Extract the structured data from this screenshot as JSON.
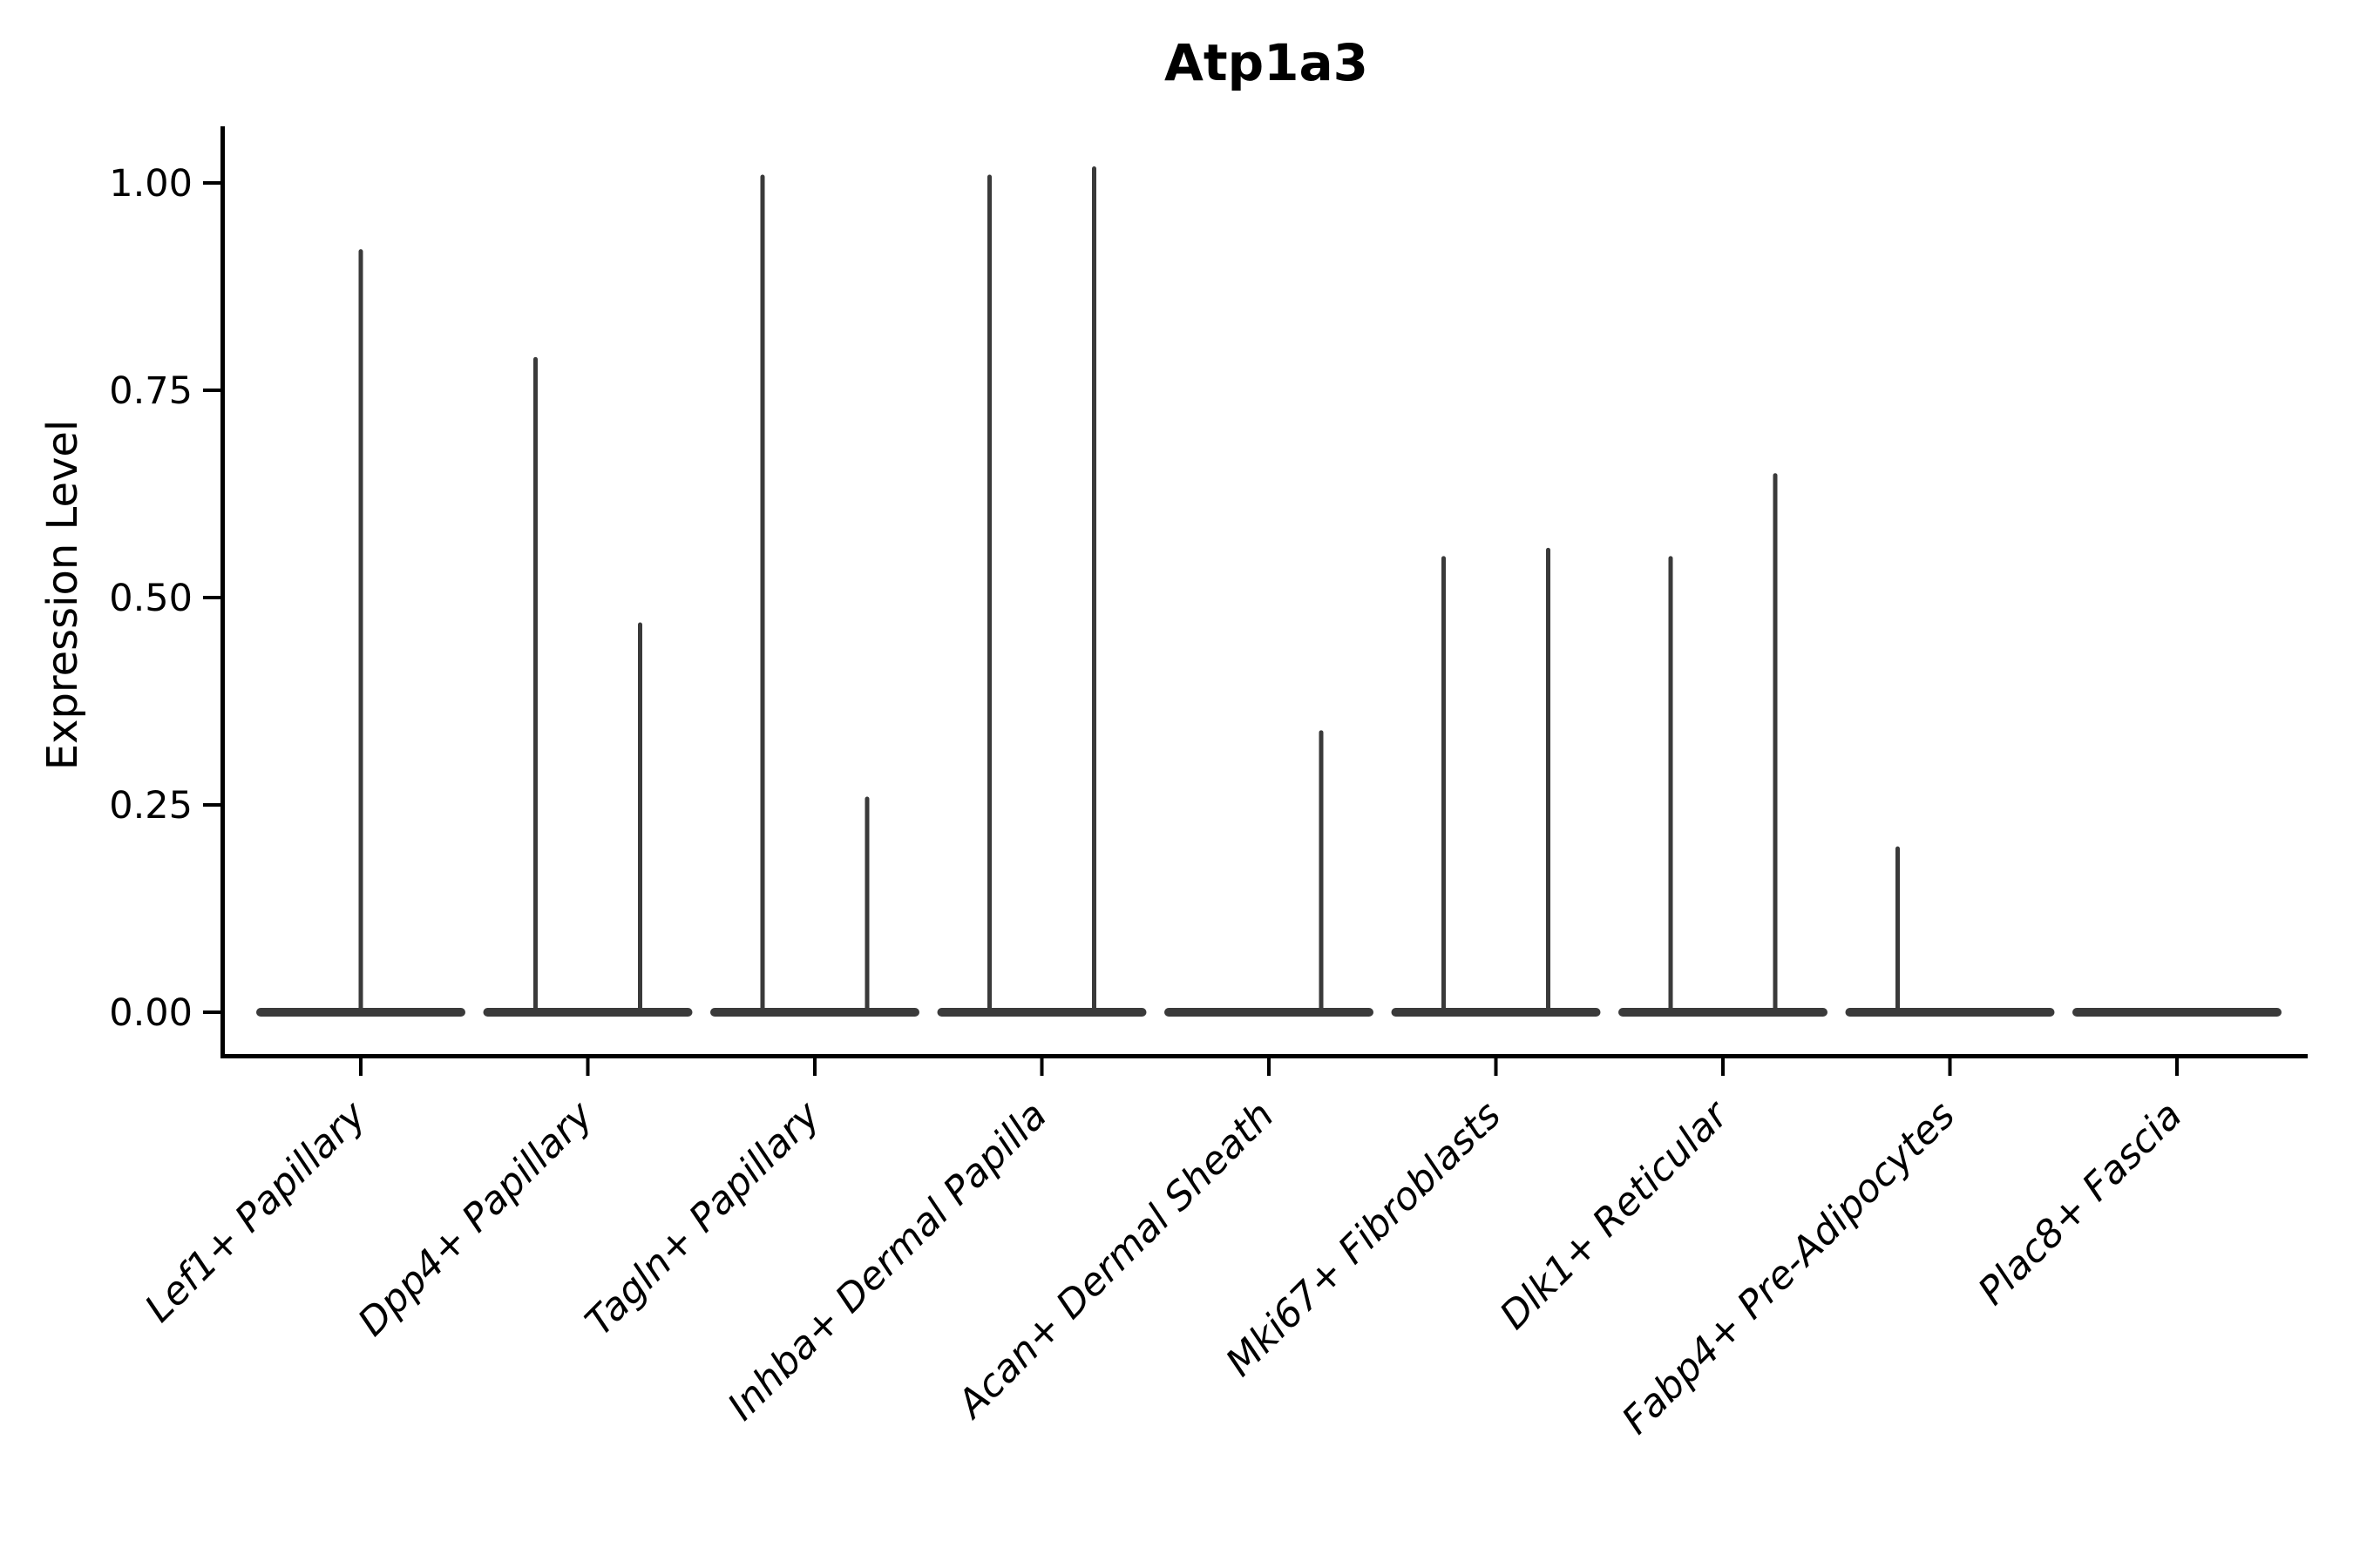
{
  "title": "Atp1a3",
  "chart_data": {
    "type": "violin",
    "title": "Atp1a3",
    "xlabel": "",
    "ylabel": "Expression Level",
    "ylim": [
      0,
      1.07
    ],
    "grid": false,
    "legend": "none",
    "violin_color": "#3a3a3a",
    "axis_color": "#000000",
    "yticks": [
      {
        "value": 0.0,
        "label": "0.00"
      },
      {
        "value": 0.25,
        "label": "0.25"
      },
      {
        "value": 0.5,
        "label": "0.50"
      },
      {
        "value": 0.75,
        "label": "0.75"
      },
      {
        "value": 1.0,
        "label": "1.00"
      }
    ],
    "description": "Violin plot of Atp1a3 expression; each cell type shows a flat violin body at expression 0 with thin spikes reaching the maximum expression of sub-violins.",
    "categories": [
      {
        "label": "Lef1+ Papillary",
        "spikes": [
          {
            "position": "center",
            "height": 0.92
          }
        ]
      },
      {
        "label": "Dpp4+ Papillary",
        "spikes": [
          {
            "position": "left",
            "height": 0.79
          },
          {
            "position": "right",
            "height": 0.47
          }
        ]
      },
      {
        "label": "Tagln+ Papillary",
        "spikes": [
          {
            "position": "left",
            "height": 1.01
          },
          {
            "position": "right",
            "height": 0.26
          }
        ]
      },
      {
        "label": "Inhba+ Dermal Papilla",
        "spikes": [
          {
            "position": "left",
            "height": 1.01
          },
          {
            "position": "right",
            "height": 1.02
          }
        ]
      },
      {
        "label": "Acan+ Dermal Sheath",
        "spikes": [
          {
            "position": "right",
            "height": 0.34
          }
        ]
      },
      {
        "label": "Mki67+ Fibroblasts",
        "spikes": [
          {
            "position": "left",
            "height": 0.55
          },
          {
            "position": "right",
            "height": 0.56
          }
        ]
      },
      {
        "label": "Dlk1+ Reticular",
        "spikes": [
          {
            "position": "left",
            "height": 0.55
          },
          {
            "position": "right",
            "height": 0.65
          }
        ]
      },
      {
        "label": "Fabp4+ Pre-Adipocytes",
        "spikes": [
          {
            "position": "left",
            "height": 0.2
          }
        ]
      },
      {
        "label": "Plac8+ Fascia",
        "spikes": []
      }
    ]
  }
}
